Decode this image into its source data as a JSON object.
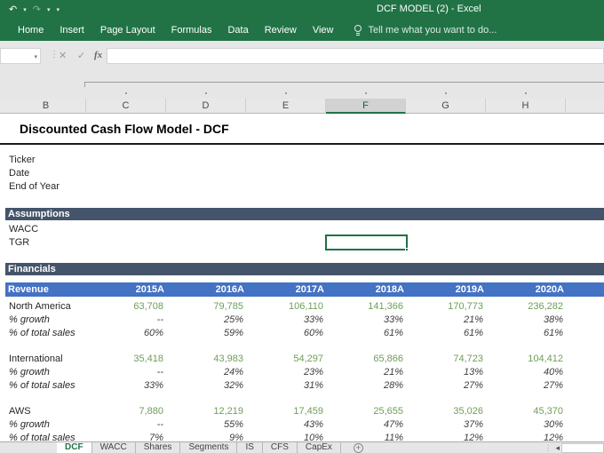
{
  "titlebar": {
    "title": "DCF MODEL (2) - Excel"
  },
  "icons": {
    "undo": "↶",
    "redo": "↷",
    "dropdown": "▾",
    "cancel": "✕",
    "enter": "✓",
    "fx": "fx",
    "plus": "+",
    "left_arrow": "◂",
    "dots": "⋮",
    "fb_dots": "⋮"
  },
  "ribbon": {
    "tabs": [
      "Home",
      "Insert",
      "Page Layout",
      "Formulas",
      "Data",
      "Review",
      "View"
    ],
    "tell_me": "Tell me what you want to do..."
  },
  "formula_bar": {
    "name_box_value": "",
    "formula_value": ""
  },
  "grid": {
    "columns": [
      "B",
      "C",
      "D",
      "E",
      "F",
      "G",
      "H"
    ],
    "selected_column": "F",
    "title": "Discounted Cash Flow Model - DCF",
    "info_rows": [
      "Ticker",
      "Date",
      "End of Year"
    ],
    "assumptions": {
      "label": "Assumptions",
      "rows": [
        "WACC",
        "TGR"
      ]
    },
    "financials_label": "Financials",
    "table": {
      "header_label": "Revenue",
      "years": [
        "2015A",
        "2016A",
        "2017A",
        "2018A",
        "2019A",
        "2020A"
      ],
      "growth_label": "% growth",
      "share_label": "% of total sales",
      "groups": [
        {
          "name": "North America",
          "values": [
            "63,708",
            "79,785",
            "106,110",
            "141,366",
            "170,773",
            "236,282"
          ],
          "growth": [
            "--",
            "25%",
            "33%",
            "33%",
            "21%",
            "38%"
          ],
          "share": [
            "60%",
            "59%",
            "60%",
            "61%",
            "61%",
            "61%"
          ]
        },
        {
          "name": "International",
          "values": [
            "35,418",
            "43,983",
            "54,297",
            "65,866",
            "74,723",
            "104,412"
          ],
          "growth": [
            "--",
            "24%",
            "23%",
            "21%",
            "13%",
            "40%"
          ],
          "share": [
            "33%",
            "32%",
            "31%",
            "28%",
            "27%",
            "27%"
          ]
        },
        {
          "name": "AWS",
          "values": [
            "7,880",
            "12,219",
            "17,459",
            "25,655",
            "35,026",
            "45,370"
          ],
          "growth": [
            "--",
            "55%",
            "43%",
            "47%",
            "37%",
            "30%"
          ],
          "share": [
            "7%",
            "9%",
            "10%",
            "11%",
            "12%",
            "12%"
          ]
        }
      ]
    }
  },
  "sheet_tabs": {
    "active": "DCF",
    "tabs": [
      "DCF",
      "WACC",
      "Shares",
      "Segments",
      "IS",
      "CFS",
      "CapEx"
    ]
  },
  "colors": {
    "excel_green": "#217346",
    "section_bar": "#44546A",
    "table_header_blue": "#4472C4",
    "value_green": "#6f9e58"
  }
}
